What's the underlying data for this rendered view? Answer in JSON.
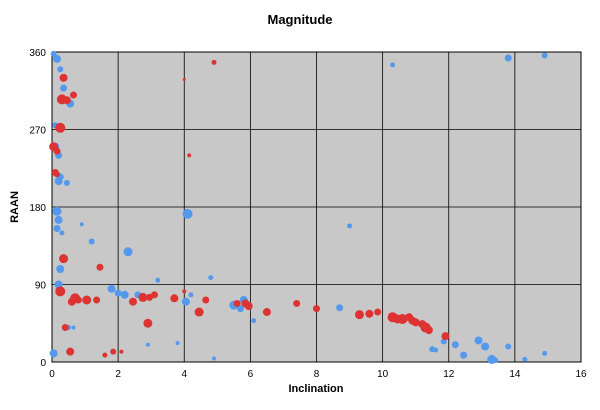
{
  "chart_data": {
    "type": "scatter",
    "title": "Magnitude",
    "xlabel": "Inclination",
    "ylabel": "RAAN",
    "xlim": [
      0,
      16
    ],
    "ylim": [
      0,
      360
    ],
    "x_ticks": [
      "0",
      "2",
      "4",
      "6",
      "8",
      "10",
      "12",
      "14",
      "16"
    ],
    "y_ticks": [
      "0",
      "90",
      "180",
      "270",
      "360"
    ],
    "grid": true,
    "plot_background": "#c8c8c8",
    "series": [
      {
        "color": "#5599ee",
        "points": [
          [
            0.05,
            358,
            3
          ],
          [
            0.15,
            352,
            4
          ],
          [
            0.25,
            340,
            3
          ],
          [
            0.35,
            318,
            3.5
          ],
          [
            0.55,
            300,
            4
          ],
          [
            0.1,
            275,
            3
          ],
          [
            0.1,
            250,
            4
          ],
          [
            0.2,
            240,
            3.5
          ],
          [
            0.25,
            215,
            3.5
          ],
          [
            0.2,
            210,
            4
          ],
          [
            0.45,
            208,
            3
          ],
          [
            0.15,
            175,
            4.5
          ],
          [
            0.2,
            165,
            4
          ],
          [
            0.15,
            155,
            3.5
          ],
          [
            0.3,
            150,
            2.5
          ],
          [
            0.9,
            160,
            2
          ],
          [
            1.2,
            140,
            3
          ],
          [
            2.3,
            128,
            4.5
          ],
          [
            0.25,
            108,
            4
          ],
          [
            0.2,
            90,
            4
          ],
          [
            0.2,
            85,
            3
          ],
          [
            3.2,
            95,
            2.5
          ],
          [
            4.8,
            98,
            2.5
          ],
          [
            1.8,
            85,
            4
          ],
          [
            2,
            80,
            3.5
          ],
          [
            2.2,
            78,
            4
          ],
          [
            2.6,
            78,
            3.5
          ],
          [
            4.1,
            172,
            5
          ],
          [
            4.05,
            70,
            4
          ],
          [
            4.2,
            78,
            2.5
          ],
          [
            5.5,
            66,
            4.5
          ],
          [
            5.8,
            72,
            4
          ],
          [
            5.7,
            62,
            3.5
          ],
          [
            6.1,
            48,
            2.5
          ],
          [
            8.7,
            63,
            3.5
          ],
          [
            9,
            158,
            2.5
          ],
          [
            10.3,
            345,
            2.5
          ],
          [
            12.2,
            20,
            3.5
          ],
          [
            12.45,
            8,
            3.5
          ],
          [
            12.9,
            25,
            4
          ],
          [
            13.1,
            18,
            4
          ],
          [
            13.3,
            3,
            4.5
          ],
          [
            13.4,
            2,
            3
          ],
          [
            13.8,
            18,
            3
          ],
          [
            13.8,
            353,
            3.5
          ],
          [
            14.3,
            3,
            2.5
          ],
          [
            14.9,
            10,
            2.5
          ],
          [
            14.9,
            356,
            3
          ],
          [
            11.5,
            15,
            3
          ],
          [
            11.6,
            14,
            2.5
          ],
          [
            11.85,
            24,
            3
          ],
          [
            2.9,
            20,
            2
          ],
          [
            3.8,
            22,
            2
          ],
          [
            4.9,
            4,
            2
          ],
          [
            0.05,
            10,
            4
          ],
          [
            0.5,
            40,
            2.5
          ],
          [
            0.65,
            40,
            2
          ]
        ]
      },
      {
        "color": "#dd3333",
        "points": [
          [
            0.05,
            250,
            4.5
          ],
          [
            0.15,
            245,
            3.5
          ],
          [
            0.25,
            272,
            5
          ],
          [
            0.3,
            305,
            5
          ],
          [
            0.35,
            330,
            4
          ],
          [
            0.45,
            304,
            4
          ],
          [
            0.65,
            310,
            3.5
          ],
          [
            0.1,
            220,
            3.5
          ],
          [
            0.15,
            218,
            3
          ],
          [
            0.35,
            120,
            4.5
          ],
          [
            1.45,
            110,
            3.5
          ],
          [
            0.25,
            82,
            5
          ],
          [
            0.6,
            70,
            4
          ],
          [
            0.7,
            74,
            5
          ],
          [
            0.8,
            72,
            3.5
          ],
          [
            1.05,
            72,
            4.5
          ],
          [
            1.35,
            72,
            3.5
          ],
          [
            2.45,
            70,
            4
          ],
          [
            2.75,
            75,
            4.5
          ],
          [
            2.95,
            75,
            3.5
          ],
          [
            3.1,
            78,
            3.5
          ],
          [
            3.7,
            74,
            4
          ],
          [
            4.45,
            58,
            4.5
          ],
          [
            4.65,
            72,
            3.5
          ],
          [
            5.6,
            68,
            3.5
          ],
          [
            5.85,
            68,
            4
          ],
          [
            5.95,
            65,
            4
          ],
          [
            6.5,
            58,
            4
          ],
          [
            7.4,
            68,
            3.5
          ],
          [
            8,
            62,
            3.5
          ],
          [
            9.3,
            55,
            4.5
          ],
          [
            9.6,
            56,
            4
          ],
          [
            9.85,
            58,
            3.5
          ],
          [
            10.3,
            52,
            5
          ],
          [
            10.45,
            50,
            4.5
          ],
          [
            10.6,
            50,
            5
          ],
          [
            10.8,
            52,
            4
          ],
          [
            10.9,
            48,
            4
          ],
          [
            11,
            46,
            4
          ],
          [
            11.2,
            44,
            4
          ],
          [
            11.3,
            40,
            5
          ],
          [
            11.4,
            37,
            4
          ],
          [
            11.9,
            30,
            4
          ],
          [
            2.9,
            45,
            4.5
          ],
          [
            0.4,
            40,
            3.5
          ],
          [
            0.55,
            12,
            4
          ],
          [
            1.6,
            8,
            2.5
          ],
          [
            1.85,
            12,
            3
          ],
          [
            4,
            82,
            2
          ],
          [
            4.15,
            240,
            2
          ],
          [
            4.9,
            348,
            2.5
          ],
          [
            4.0,
            328,
            1.5
          ],
          [
            2.1,
            12,
            2
          ]
        ]
      }
    ]
  }
}
